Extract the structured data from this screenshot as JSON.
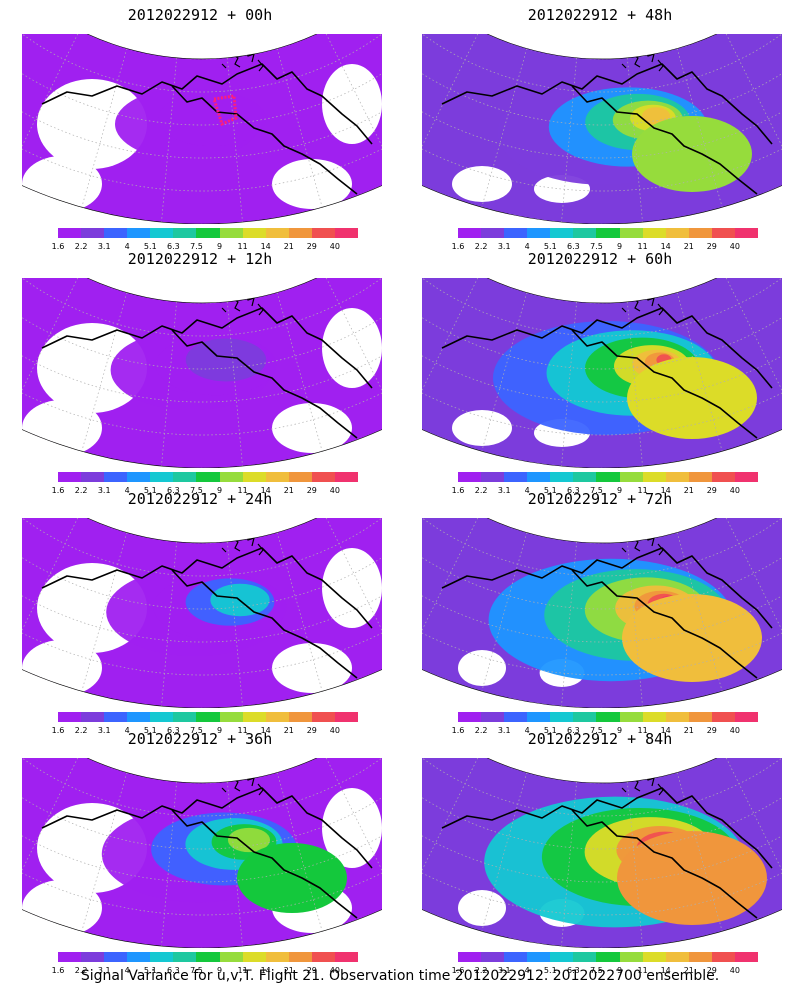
{
  "caption": "Signal Variance for u,v,T. Flight 21. Observation time 2012022912. 2012022700 ensemble.",
  "colorbar": {
    "ticks": [
      "1.6",
      "2.2",
      "3.1",
      "4",
      "5.1",
      "6.3",
      "7.5",
      "9",
      "11",
      "14",
      "21",
      "29",
      "40"
    ],
    "colors": [
      "#a020f0",
      "#7c3cdc",
      "#3c64ff",
      "#1e96ff",
      "#14c8d2",
      "#1ec8a0",
      "#14c83c",
      "#96dc3c",
      "#dcdc28",
      "#f0be3c",
      "#f0963c",
      "#f05050",
      "#f0326e"
    ]
  },
  "panels": [
    {
      "title": "2012022912 + 00h",
      "level": 0,
      "marker": true
    },
    {
      "title": "2012022912 + 48h",
      "level": 4,
      "marker": false
    },
    {
      "title": "2012022912 + 12h",
      "level": 1,
      "marker": false
    },
    {
      "title": "2012022912 + 60h",
      "level": 5,
      "marker": false
    },
    {
      "title": "2012022912 + 24h",
      "level": 2,
      "marker": false
    },
    {
      "title": "2012022912 + 72h",
      "level": 6,
      "marker": false
    },
    {
      "title": "2012022912 + 36h",
      "level": 3,
      "marker": false
    },
    {
      "title": "2012022912 + 84h",
      "level": 7,
      "marker": false
    }
  ]
}
